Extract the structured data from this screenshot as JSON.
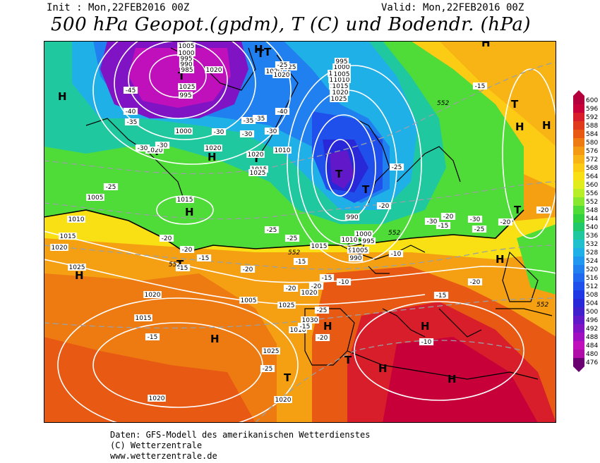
{
  "header": {
    "init": "Init : Mon,22FEB2016 00Z",
    "valid": "Valid: Mon,22FEB2016 00Z",
    "title": "500 hPa Geopot.(gpdm), T (C) und Bodendr. (hPa)"
  },
  "footer": {
    "line1": "Daten: GFS-Modell des amerikanischen Wetterdienstes",
    "line2": "(C) Wetterzentrale",
    "line3": "www.wetterzentrale.de"
  },
  "colorscale": {
    "values": [
      "600",
      "596",
      "592",
      "588",
      "584",
      "580",
      "576",
      "572",
      "568",
      "564",
      "560",
      "556",
      "552",
      "548",
      "544",
      "540",
      "536",
      "532",
      "528",
      "524",
      "520",
      "516",
      "512",
      "508",
      "504",
      "500",
      "496",
      "492",
      "488",
      "484",
      "480",
      "476"
    ],
    "colors": [
      "#b3003c",
      "#c8003a",
      "#d81e2a",
      "#e03a1c",
      "#e85a14",
      "#ee7a12",
      "#f49a12",
      "#f8b414",
      "#fccc14",
      "#f8e014",
      "#e0ec1c",
      "#b8ee28",
      "#88e830",
      "#50dc38",
      "#30d040",
      "#20c86c",
      "#20c8a0",
      "#20c0cc",
      "#20b0e8",
      "#2098f0",
      "#2080f0",
      "#2068f0",
      "#2050ec",
      "#2038e4",
      "#2828d8",
      "#4020cc",
      "#6018c8",
      "#8014c4",
      "#a010c0",
      "#c010bc",
      "#b00ca8",
      "#6a0070"
    ]
  },
  "map_labels": {
    "pressure_centers": [
      {
        "symbol": "H"
      },
      {
        "symbol": "H"
      },
      {
        "symbol": "H"
      },
      {
        "symbol": "H"
      },
      {
        "symbol": "H"
      },
      {
        "symbol": "H"
      },
      {
        "symbol": "H"
      },
      {
        "symbol": "H"
      },
      {
        "symbol": "H"
      },
      {
        "symbol": "H"
      },
      {
        "symbol": "H"
      },
      {
        "symbol": "H"
      },
      {
        "symbol": "H"
      },
      {
        "symbol": "H"
      },
      {
        "symbol": "T"
      },
      {
        "symbol": "T"
      },
      {
        "symbol": "T"
      },
      {
        "symbol": "T"
      },
      {
        "symbol": "T"
      },
      {
        "symbol": "T"
      },
      {
        "symbol": "T"
      },
      {
        "symbol": "T"
      },
      {
        "symbol": "T"
      },
      {
        "symbol": "T"
      },
      {
        "symbol": "T"
      },
      {
        "symbol": "T"
      }
    ],
    "isobar_labels": [
      "1005",
      "1000",
      "995",
      "990",
      "985",
      "995",
      "1025",
      "1020",
      "1000",
      "1020",
      "1015",
      "1020",
      "1005",
      "1010",
      "1015",
      "1020",
      "1025",
      "1010",
      "1015",
      "1020",
      "1025",
      "1020",
      "1025",
      "1020",
      "1005",
      "1010",
      "1015",
      "1020",
      "1025",
      "1020",
      "1015",
      "1010",
      "1005",
      "1000",
      "995",
      "990",
      "985",
      "990",
      "995",
      "1000",
      "1005",
      "1010",
      "1015",
      "1020",
      "1025",
      "1030",
      "1020",
      "1015",
      "1005",
      "1010",
      "1020",
      "1025",
      "1020"
    ],
    "temperature_labels": [
      "-45",
      "-40",
      "-35",
      "-30",
      "-30",
      "-35",
      "-40",
      "-25",
      "-30",
      "-35",
      "-30",
      "-25",
      "-30",
      "-20",
      "-15",
      "-25",
      "-20",
      "-15",
      "-25",
      "-20",
      "-15",
      "-10",
      "-15",
      "-20",
      "-25",
      "-20",
      "-15",
      "-20",
      "-25",
      "-15",
      "-10",
      "-15",
      "-20",
      "-25",
      "-30",
      "-20",
      "-15",
      "-10",
      "-20",
      "-25",
      "-30",
      "-20",
      "-15",
      "-20"
    ],
    "height_labels": [
      "552",
      "552",
      "552",
      "552",
      "552"
    ]
  }
}
